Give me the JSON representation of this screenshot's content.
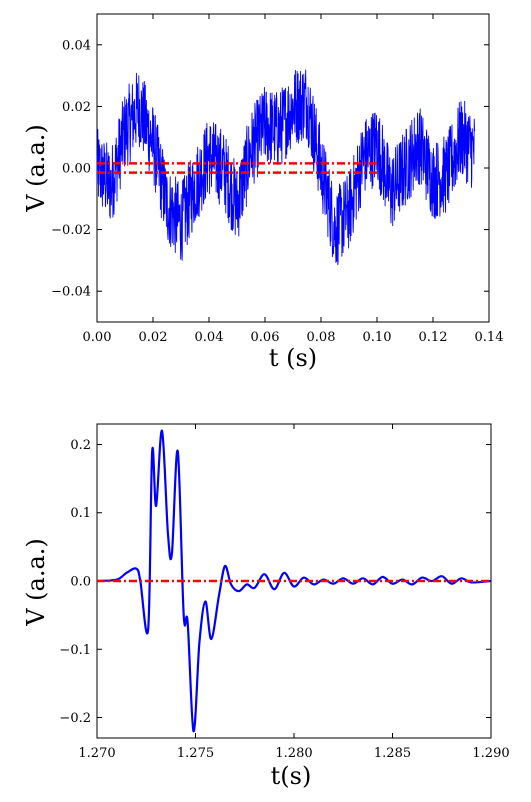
{
  "chart_data": [
    {
      "type": "line",
      "xlabel": "t (s)",
      "ylabel": "V (a.a.)",
      "xlim": [
        0.0,
        0.14
      ],
      "ylim": [
        -0.05,
        0.05
      ],
      "xticks": [
        "0.00",
        "0.02",
        "0.04",
        "0.06",
        "0.08",
        "0.10",
        "0.12",
        "0.14"
      ],
      "xtick_values": [
        0.0,
        0.02,
        0.04,
        0.06,
        0.08,
        0.1,
        0.12,
        0.14
      ],
      "yticks": [
        "0.04",
        "0.02",
        "0.00",
        "−0.02",
        "−0.04"
      ],
      "ytick_values": [
        0.04,
        0.02,
        0.0,
        -0.02,
        -0.04
      ],
      "grid": false,
      "series": [
        {
          "style": "noisy-solid",
          "color": "#0000ff",
          "x": [
            0.0,
            0.005,
            0.01,
            0.015,
            0.02,
            0.025,
            0.03,
            0.035,
            0.04,
            0.045,
            0.05,
            0.055,
            0.06,
            0.065,
            0.07,
            0.075,
            0.08,
            0.085,
            0.09,
            0.095,
            0.1,
            0.105,
            0.11,
            0.115,
            0.12,
            0.125,
            0.13,
            0.135
          ],
          "y": [
            0.0,
            -0.006,
            0.012,
            0.02,
            0.008,
            -0.012,
            -0.018,
            -0.006,
            0.004,
            0.0,
            -0.012,
            0.006,
            0.014,
            0.012,
            0.02,
            0.022,
            0.0,
            -0.02,
            -0.014,
            0.003,
            0.008,
            -0.008,
            0.0,
            0.008,
            -0.004,
            -0.002,
            0.01,
            0.005
          ]
        },
        {
          "style": "dash-dot",
          "color": "#ff0000",
          "x": [
            0.0,
            0.1
          ],
          "y": [
            0.0015,
            0.0015
          ]
        },
        {
          "style": "dash-dot",
          "color": "#ff0000",
          "x": [
            0.0,
            0.1
          ],
          "y": [
            -0.0015,
            -0.0015
          ]
        }
      ]
    },
    {
      "type": "line",
      "xlabel": "t(s)",
      "ylabel": "V (a.a.)",
      "xlim": [
        1.27,
        1.29
      ],
      "ylim": [
        -0.23,
        0.23
      ],
      "xticks": [
        "1.270",
        "1.275",
        "1.280",
        "1.285",
        "1.290"
      ],
      "xtick_values": [
        1.27,
        1.275,
        1.28,
        1.285,
        1.29
      ],
      "yticks": [
        "0.2",
        "0.1",
        "0.0",
        "−0.1",
        "−0.2"
      ],
      "ytick_values": [
        0.2,
        0.1,
        0.0,
        -0.1,
        -0.2
      ],
      "grid": false,
      "series": [
        {
          "style": "solid",
          "color": "#0000ff",
          "x": [
            1.27,
            1.271,
            1.2715,
            1.272,
            1.2722,
            1.2726,
            1.2728,
            1.273,
            1.2733,
            1.2736,
            1.2738,
            1.2741,
            1.2744,
            1.2746,
            1.2749,
            1.2752,
            1.2755,
            1.2758,
            1.2762,
            1.2765,
            1.2768,
            1.2772,
            1.2776,
            1.278,
            1.2785,
            1.279,
            1.2795,
            1.28,
            1.2805,
            1.281,
            1.2815,
            1.282,
            1.2825,
            1.283,
            1.2835,
            1.284,
            1.2845,
            1.285,
            1.2855,
            1.286,
            1.2865,
            1.287,
            1.2875,
            1.288,
            1.2885,
            1.289,
            1.29
          ],
          "y": [
            0.0,
            0.002,
            0.012,
            0.018,
            0.0,
            -0.07,
            0.19,
            0.11,
            0.22,
            0.07,
            0.04,
            0.19,
            -0.05,
            -0.06,
            -0.22,
            -0.09,
            -0.03,
            -0.085,
            -0.02,
            0.022,
            -0.005,
            -0.015,
            -0.005,
            -0.01,
            0.01,
            -0.012,
            0.012,
            -0.008,
            0.005,
            -0.005,
            0.002,
            -0.004,
            0.004,
            -0.004,
            0.004,
            -0.005,
            0.006,
            -0.004,
            0.002,
            -0.005,
            0.005,
            0.0,
            0.007,
            -0.004,
            0.004,
            -0.002,
            0.0
          ]
        },
        {
          "style": "dash-dot",
          "color": "#ff0000",
          "x": [
            1.27,
            1.29
          ],
          "y": [
            0.0,
            0.0
          ]
        }
      ]
    }
  ]
}
